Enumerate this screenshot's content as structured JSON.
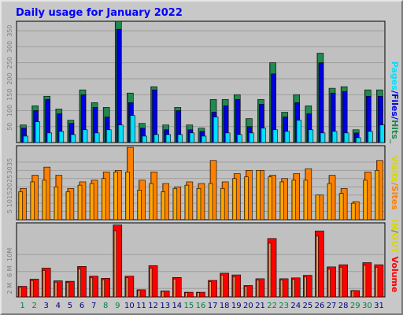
{
  "title": "Daily usage for January 2022",
  "legend": {
    "pages": "Pages",
    "files": "Files",
    "hits": "Hits",
    "visits": "Visits",
    "sites": "Sites",
    "in": "IN",
    "out": "OUT",
    "volume": "Volume",
    "sep": "/",
    "underscore": "_"
  },
  "colors": {
    "hits": "#218a4f",
    "files": "#0000e0",
    "pages": "#00e0ff",
    "visits": "#ff8000",
    "sites": "#ffa600",
    "in": "#d8d800",
    "out": "#ff4f00",
    "volume": "#ff0000",
    "weekday": "#000080",
    "weekend": "#008040"
  },
  "chart_data": [
    {
      "type": "bar",
      "name": "hits-files-pages",
      "ylim": [
        0,
        380
      ],
      "yticks": [
        50,
        100,
        150,
        200,
        250,
        300,
        350
      ],
      "categories": [
        "1",
        "2",
        "3",
        "4",
        "5",
        "6",
        "7",
        "8",
        "9",
        "10",
        "11",
        "12",
        "13",
        "14",
        "15",
        "16",
        "17",
        "18",
        "19",
        "20",
        "21",
        "22",
        "23",
        "24",
        "25",
        "26",
        "27",
        "28",
        "29",
        "30",
        "31"
      ],
      "series": [
        {
          "name": "Hits",
          "values": [
            55,
            115,
            145,
            105,
            70,
            165,
            125,
            110,
            380,
            155,
            60,
            175,
            55,
            110,
            55,
            45,
            135,
            135,
            150,
            75,
            135,
            250,
            95,
            150,
            115,
            280,
            170,
            175,
            40,
            165,
            165
          ]
        },
        {
          "name": "Files",
          "values": [
            45,
            100,
            135,
            90,
            60,
            150,
            110,
            80,
            355,
            125,
            45,
            165,
            40,
            100,
            40,
            35,
            95,
            115,
            135,
            50,
            120,
            215,
            80,
            125,
            90,
            250,
            155,
            160,
            30,
            145,
            145
          ]
        },
        {
          "name": "Pages",
          "values": [
            20,
            65,
            30,
            35,
            25,
            40,
            30,
            40,
            55,
            85,
            20,
            25,
            25,
            25,
            30,
            20,
            80,
            30,
            25,
            30,
            45,
            40,
            35,
            70,
            40,
            30,
            35,
            30,
            15,
            35,
            55
          ]
        }
      ]
    },
    {
      "type": "bar",
      "name": "visits-sites",
      "ylim": [
        0,
        45
      ],
      "yticks": [
        5,
        10,
        15,
        20,
        25,
        30,
        35
      ],
      "categories": [
        "1",
        "2",
        "3",
        "4",
        "5",
        "6",
        "7",
        "8",
        "9",
        "10",
        "11",
        "12",
        "13",
        "14",
        "15",
        "16",
        "17",
        "18",
        "19",
        "20",
        "21",
        "22",
        "23",
        "24",
        "25",
        "26",
        "27",
        "28",
        "29",
        "30",
        "31"
      ],
      "series": [
        {
          "name": "Visits",
          "values": [
            19,
            27,
            32,
            27,
            19,
            23,
            24,
            29,
            30,
            44,
            24,
            29,
            22,
            20,
            23,
            22,
            36,
            23,
            28,
            30,
            30,
            27,
            25,
            28,
            31,
            15,
            27,
            19,
            11,
            29,
            36
          ]
        },
        {
          "name": "Sites",
          "values": [
            17,
            23,
            24,
            20,
            17,
            21,
            22,
            25,
            29,
            29,
            18,
            22,
            17,
            19,
            21,
            19,
            22,
            19,
            25,
            26,
            30,
            26,
            23,
            24,
            24,
            15,
            22,
            16,
            10,
            24,
            30
          ]
        }
      ]
    },
    {
      "type": "bar",
      "name": "volume",
      "ylim": [
        0,
        17.5
      ],
      "yticks": [
        2,
        6,
        10
      ],
      "ytick_labels": [
        "2 M",
        "6 M",
        "10M"
      ],
      "categories": [
        "1",
        "2",
        "3",
        "4",
        "5",
        "6",
        "7",
        "8",
        "9",
        "10",
        "11",
        "12",
        "13",
        "14",
        "15",
        "16",
        "17",
        "18",
        "19",
        "20",
        "21",
        "22",
        "23",
        "24",
        "25",
        "26",
        "27",
        "28",
        "29",
        "30",
        "31"
      ],
      "series": [
        {
          "name": "Volume",
          "values": [
            2.5,
            4.2,
            6.8,
            3.8,
            3.7,
            7.2,
            4.9,
            4.4,
            17.0,
            4.9,
            1.7,
            7.4,
            1.4,
            4.6,
            1.1,
            1.1,
            3.9,
            5.6,
            5.2,
            2.7,
            4.3,
            13.8,
            4.3,
            4.5,
            5.1,
            15.6,
            7.1,
            7.6,
            1.5,
            8.1,
            7.6
          ]
        }
      ]
    }
  ],
  "weekend_days": [
    1,
    2,
    8,
    9,
    15,
    16,
    22,
    23,
    29,
    30
  ]
}
